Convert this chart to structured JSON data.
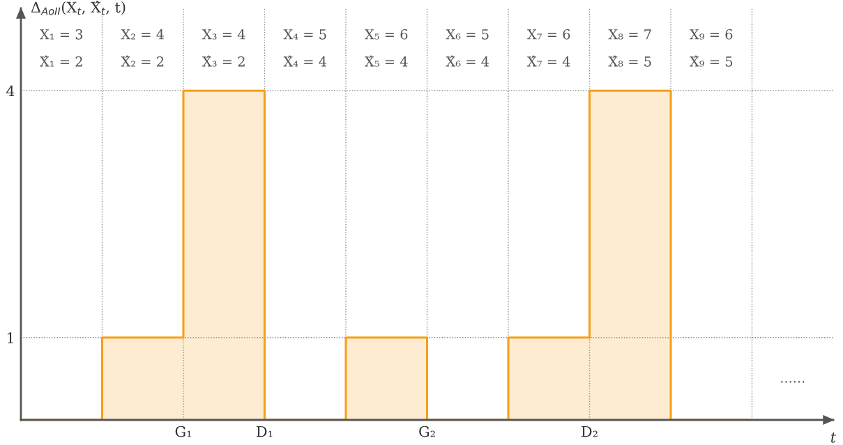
{
  "chart_data": {
    "type": "step",
    "categories": [
      null,
      null,
      "G₁",
      "D₁",
      null,
      "G₂",
      null,
      "D₂",
      null,
      null
    ],
    "series": [
      {
        "color": "#f5a01a",
        "values": [
          0,
          1,
          4,
          0,
          1,
          0,
          1,
          4,
          0,
          0
        ]
      }
    ],
    "ylim": [
      0,
      5
    ],
    "yticks": [
      1,
      4
    ],
    "grid": true,
    "xlabel": "t",
    "ylabel": "Δ$_{AoII}$(X$_{t}$, X̂$_{t}$, t)",
    "annotations": [
      "X₁ = 3",
      "X̂₁ = 2",
      "X₂ = 4",
      "X̂₂ = 2",
      "X₃ = 4",
      "X̂₃ = 2",
      "X₄ = 5",
      "X̂₄ = 4",
      "X₅ = 6",
      "X̂₅ = 4",
      "X₆ = 5",
      "X̂₆ = 4",
      "X₇ = 6",
      "X̂₇ = 4",
      "X₈ = 7",
      "X̂₈ = 5",
      "X₉ = 6",
      "X̂₉ = 5",
      "......"
    ]
  }
}
